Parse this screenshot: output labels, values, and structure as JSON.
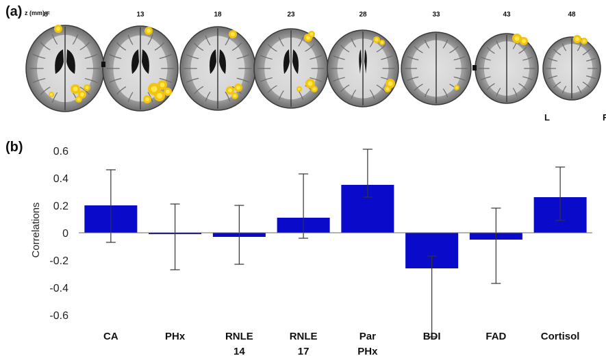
{
  "panel_a": {
    "label": "(a)",
    "z_label": "z (mm) =",
    "slices": [
      "8",
      "13",
      "18",
      "23",
      "28",
      "33",
      "43",
      "48"
    ],
    "orientation_left": "L",
    "orientation_right": "R",
    "activation_color": "#f2c40f",
    "activation_core": "#ffe94a"
  },
  "panel_b": {
    "label": "(b)"
  },
  "chart_data": {
    "type": "bar",
    "categories": [
      "CA",
      "PHx",
      "RNLE\n14",
      "RNLE\n17",
      "Par\nPHx",
      "BDI",
      "FAD",
      "Cortisol"
    ],
    "values": [
      0.2,
      -0.01,
      -0.03,
      0.11,
      0.35,
      -0.26,
      -0.05,
      0.26
    ],
    "error_low": [
      -0.07,
      -0.27,
      -0.23,
      -0.04,
      0.26,
      -0.76,
      -0.37,
      0.09
    ],
    "error_high": [
      0.46,
      0.21,
      0.2,
      0.43,
      0.61,
      -0.17,
      0.18,
      0.48
    ],
    "ylabel": "Correlations",
    "ylim": [
      -0.65,
      0.62
    ],
    "yticks": [
      0.6,
      0.4,
      0.2,
      0,
      -0.2,
      -0.4,
      -0.6
    ],
    "ytick_labels": [
      "0.6",
      "0.4",
      "0.2",
      "0",
      "-0.2",
      "-0.4",
      "-0.6"
    ],
    "bar_color": "#0a0acb",
    "grid": false
  }
}
